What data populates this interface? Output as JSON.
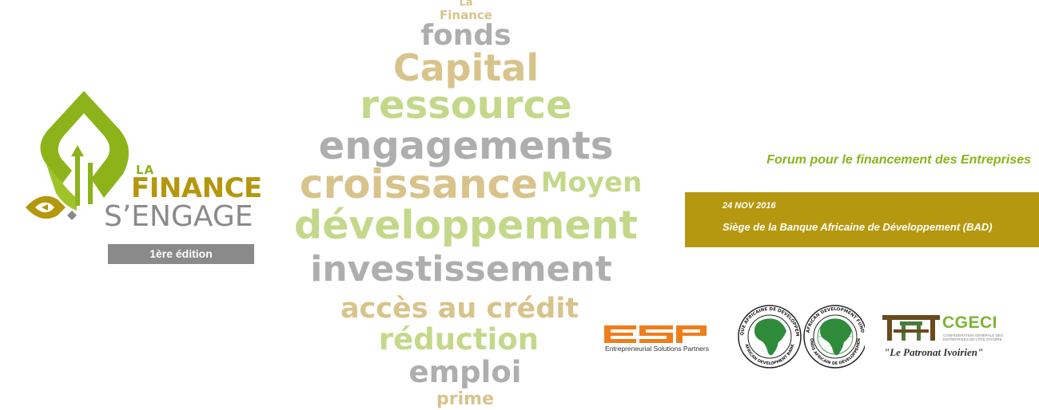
{
  "logo": {
    "la": "LA",
    "finance": "FINANCE",
    "sengage": "S’ENGAGE",
    "edition": "1ère édition",
    "colors": {
      "green": "#8cb31a",
      "gold": "#b5970d",
      "gray": "#8a8a8a"
    }
  },
  "word_cloud": {
    "la": "La",
    "finance": "Finance",
    "fonds": "fonds",
    "capital": "Capital",
    "ressource": "ressource",
    "engagements": "engagements",
    "croissance": "croissance",
    "moyen": "Moyen",
    "developpement": "développement",
    "investissement": "investissement",
    "acces_credit": "accès au crédit",
    "reduction": "réduction",
    "emploi": "emploi",
    "prime": "prime",
    "colors": {
      "gray": "#aeaeae",
      "green": "#c4d88a",
      "gold": "#d8c38b"
    }
  },
  "forum": {
    "title": "Forum pour le financement des Entreprises",
    "date": "24 NOV 2016",
    "venue": "Siège de la Banque Africaine de Développement (BAD)",
    "box_color": "#b59810"
  },
  "partners": {
    "esp": {
      "logo_text": "ESP",
      "subtitle": "Entrepreneurial Solutions Partners",
      "color": "#f07d1b"
    },
    "afdb": {
      "seal_left_text": "BANQUE AFRICAINE DE DÉVELOPPEMENT",
      "seal_left_bottom": "AFRICAN DEVELOPMENT BANK",
      "seal_right_text": "AFRICAN DEVELOPMENT FUND",
      "seal_right_bottom": "FONDS AFRICAIN DE DÉVELOPPEMENT",
      "color": "#2e8b3a"
    },
    "cgeci": {
      "name": "CGECI",
      "subtitle": "CONFÉDÉRATION GÉNÉRALE DES ENTREPRISES DE CÔTE D'IVOIRE",
      "slogan": "\"Le Patronat Ivoirien\""
    }
  }
}
